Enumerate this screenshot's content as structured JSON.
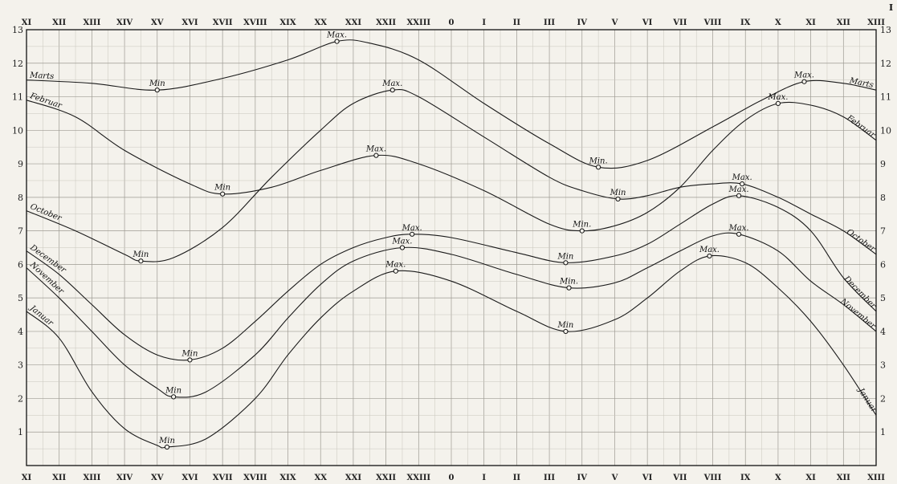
{
  "corner_label": "I",
  "chart_data": {
    "type": "line",
    "title": "",
    "xlabel": "",
    "ylabel": "",
    "x_tick_labels": [
      "XI",
      "XII",
      "XIII",
      "XIV",
      "XV",
      "XVI",
      "XVII",
      "XVIII",
      "XIX",
      "XX",
      "XXI",
      "XXII",
      "XXIII",
      "0",
      "I",
      "II",
      "III",
      "IV",
      "V",
      "VI",
      "VII",
      "VIII",
      "IX",
      "X",
      "XI",
      "XII",
      "XIII"
    ],
    "ylim": [
      0,
      13
    ],
    "y_ticks": [
      1,
      2,
      3,
      4,
      5,
      6,
      7,
      8,
      9,
      10,
      11,
      12,
      13
    ],
    "grid": true,
    "series": [
      {
        "name": "Marts",
        "points": [
          [
            0,
            11.5
          ],
          [
            2,
            11.4
          ],
          [
            4,
            11.2
          ],
          [
            6,
            11.55
          ],
          [
            8,
            12.1
          ],
          [
            9.5,
            12.65
          ],
          [
            10.5,
            12.6
          ],
          [
            12,
            12.1
          ],
          [
            14,
            10.8
          ],
          [
            16,
            9.6
          ],
          [
            17.5,
            8.9
          ],
          [
            19,
            9.1
          ],
          [
            21,
            10.1
          ],
          [
            22.5,
            10.9
          ],
          [
            23.8,
            11.45
          ],
          [
            25,
            11.4
          ],
          [
            26,
            11.2
          ]
        ],
        "extrema": [
          {
            "label": "Min",
            "x": 4,
            "y": 11.2
          },
          {
            "label": "Max.",
            "x": 9.5,
            "y": 12.65
          },
          {
            "label": "Min.",
            "x": 17.5,
            "y": 8.9
          },
          {
            "label": "Max.",
            "x": 23.8,
            "y": 11.45
          }
        ]
      },
      {
        "name": "Februar",
        "points": [
          [
            0,
            10.9
          ],
          [
            1.5,
            10.4
          ],
          [
            3,
            9.4
          ],
          [
            5,
            8.4
          ],
          [
            6,
            8.1
          ],
          [
            7.5,
            8.3
          ],
          [
            9,
            8.8
          ],
          [
            10.7,
            9.25
          ],
          [
            12,
            9.0
          ],
          [
            14,
            8.2
          ],
          [
            16,
            7.2
          ],
          [
            17,
            7.0
          ],
          [
            18,
            7.15
          ],
          [
            19,
            7.55
          ],
          [
            20,
            8.3
          ],
          [
            21,
            9.4
          ],
          [
            22,
            10.3
          ],
          [
            23,
            10.8
          ],
          [
            24,
            10.75
          ],
          [
            25,
            10.4
          ],
          [
            26,
            9.7
          ]
        ],
        "extrema": [
          {
            "label": "Min",
            "x": 6,
            "y": 8.1
          },
          {
            "label": "Max.",
            "x": 10.7,
            "y": 9.25
          },
          {
            "label": "Min.",
            "x": 17,
            "y": 7.0
          },
          {
            "label": "Max.",
            "x": 23,
            "y": 10.8
          }
        ]
      },
      {
        "name": "October",
        "points": [
          [
            0,
            7.6
          ],
          [
            1.5,
            7.0
          ],
          [
            3,
            6.3
          ],
          [
            3.5,
            6.1
          ],
          [
            4.5,
            6.2
          ],
          [
            6,
            7.1
          ],
          [
            7.5,
            8.6
          ],
          [
            9,
            10.0
          ],
          [
            10,
            10.8
          ],
          [
            11.2,
            11.2
          ],
          [
            12,
            11.0
          ],
          [
            14,
            9.8
          ],
          [
            16,
            8.6
          ],
          [
            17,
            8.2
          ],
          [
            18.1,
            7.95
          ],
          [
            19,
            8.05
          ],
          [
            20,
            8.3
          ],
          [
            21,
            8.4
          ],
          [
            21.9,
            8.4
          ],
          [
            23,
            8.0
          ],
          [
            24,
            7.5
          ],
          [
            25,
            7.0
          ],
          [
            26,
            6.3
          ]
        ],
        "extrema": [
          {
            "label": "Min",
            "x": 3.5,
            "y": 6.1
          },
          {
            "label": "Max.",
            "x": 11.2,
            "y": 11.2
          },
          {
            "label": "Min",
            "x": 18.1,
            "y": 7.95
          },
          {
            "label": "Max.",
            "x": 21.9,
            "y": 8.4
          }
        ]
      },
      {
        "name": "December",
        "points": [
          [
            0,
            6.4
          ],
          [
            1,
            5.7
          ],
          [
            2,
            4.8
          ],
          [
            3,
            3.9
          ],
          [
            4,
            3.3
          ],
          [
            5,
            3.15
          ],
          [
            6,
            3.5
          ],
          [
            7,
            4.3
          ],
          [
            8,
            5.2
          ],
          [
            9,
            6.0
          ],
          [
            10,
            6.5
          ],
          [
            11,
            6.8
          ],
          [
            11.8,
            6.9
          ],
          [
            13,
            6.8
          ],
          [
            15,
            6.35
          ],
          [
            16.5,
            6.05
          ],
          [
            18,
            6.25
          ],
          [
            19,
            6.6
          ],
          [
            20,
            7.2
          ],
          [
            21,
            7.8
          ],
          [
            21.8,
            8.05
          ],
          [
            23,
            7.7
          ],
          [
            24,
            7.0
          ],
          [
            25,
            5.6
          ],
          [
            26,
            4.6
          ]
        ],
        "extrema": [
          {
            "label": "Min",
            "x": 5,
            "y": 3.15
          },
          {
            "label": "Max.",
            "x": 11.8,
            "y": 6.9
          },
          {
            "label": "Min",
            "x": 16.5,
            "y": 6.05
          },
          {
            "label": "Max.",
            "x": 21.8,
            "y": 8.05
          }
        ]
      },
      {
        "name": "November",
        "points": [
          [
            0,
            5.9
          ],
          [
            1,
            5.0
          ],
          [
            2,
            4.0
          ],
          [
            3,
            3.0
          ],
          [
            4,
            2.3
          ],
          [
            4.5,
            2.05
          ],
          [
            5.5,
            2.2
          ],
          [
            7,
            3.3
          ],
          [
            8,
            4.4
          ],
          [
            9,
            5.4
          ],
          [
            10,
            6.1
          ],
          [
            11.5,
            6.5
          ],
          [
            13,
            6.3
          ],
          [
            15,
            5.7
          ],
          [
            16.6,
            5.3
          ],
          [
            18,
            5.45
          ],
          [
            19,
            5.9
          ],
          [
            20,
            6.4
          ],
          [
            21,
            6.85
          ],
          [
            21.8,
            6.9
          ],
          [
            23,
            6.4
          ],
          [
            24,
            5.5
          ],
          [
            25,
            4.8
          ],
          [
            26,
            4.0
          ]
        ],
        "extrema": [
          {
            "label": "Min",
            "x": 4.5,
            "y": 2.05
          },
          {
            "label": "Max.",
            "x": 11.5,
            "y": 6.5
          },
          {
            "label": "Min.",
            "x": 16.6,
            "y": 5.3
          },
          {
            "label": "Max.",
            "x": 21.8,
            "y": 6.9
          }
        ]
      },
      {
        "name": "Januar",
        "points": [
          [
            0,
            4.6
          ],
          [
            1,
            3.8
          ],
          [
            2,
            2.2
          ],
          [
            3,
            1.1
          ],
          [
            4,
            0.6
          ],
          [
            4.3,
            0.55
          ],
          [
            5.5,
            0.8
          ],
          [
            7,
            2.0
          ],
          [
            8,
            3.3
          ],
          [
            9,
            4.4
          ],
          [
            10,
            5.2
          ],
          [
            11.3,
            5.8
          ],
          [
            13,
            5.5
          ],
          [
            15,
            4.6
          ],
          [
            16.5,
            4.0
          ],
          [
            18,
            4.35
          ],
          [
            19,
            5.0
          ],
          [
            20,
            5.8
          ],
          [
            20.9,
            6.25
          ],
          [
            22,
            6.05
          ],
          [
            23,
            5.3
          ],
          [
            24,
            4.3
          ],
          [
            25,
            3.0
          ],
          [
            26,
            1.5
          ]
        ],
        "extrema": [
          {
            "label": "Min",
            "x": 4.3,
            "y": 0.55
          },
          {
            "label": "Max.",
            "x": 11.3,
            "y": 5.8
          },
          {
            "label": "Min",
            "x": 16.5,
            "y": 4.0
          },
          {
            "label": "Max.",
            "x": 20.9,
            "y": 6.25
          }
        ]
      }
    ]
  }
}
